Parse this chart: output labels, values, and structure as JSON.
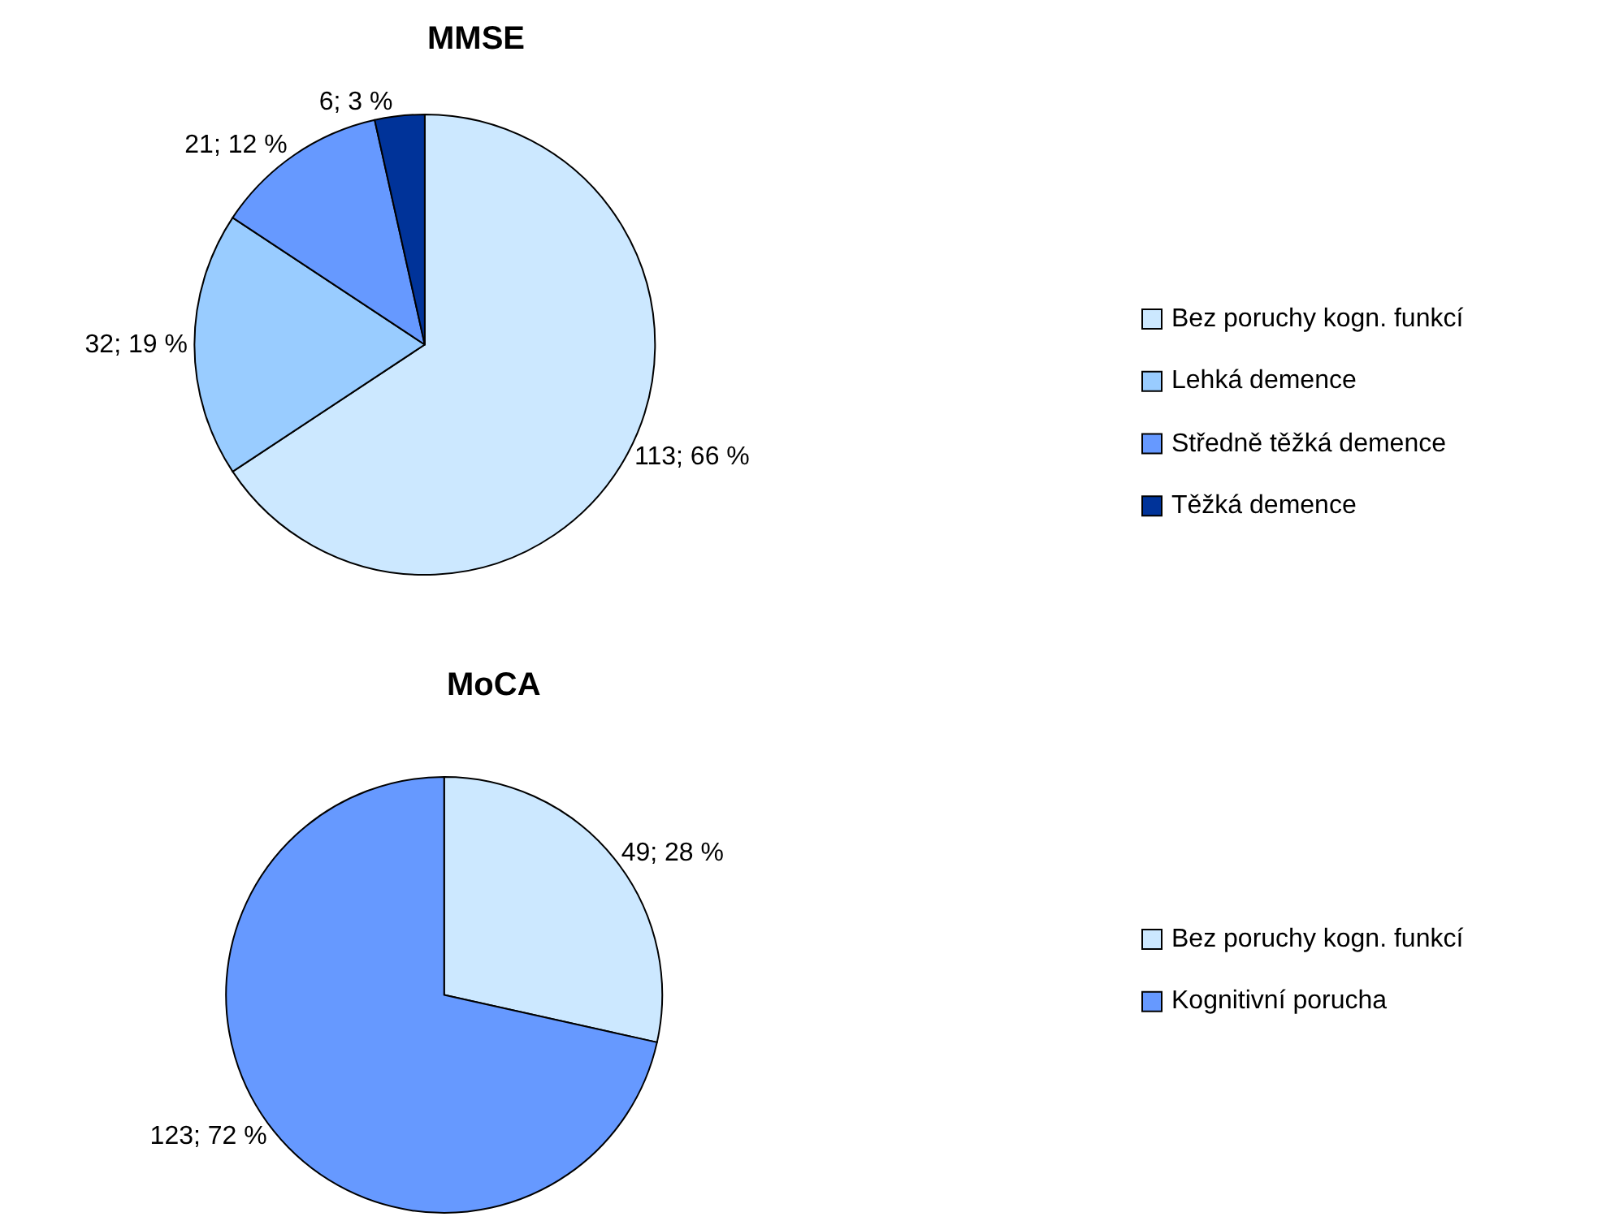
{
  "chart_data": [
    {
      "type": "pie",
      "title": "MMSE",
      "categories": [
        "Bez poruchy kogn. funkcí",
        "Lehká demence",
        "Středně těžká demence",
        "Těžká demence"
      ],
      "values": [
        113,
        32,
        21,
        6
      ],
      "colors": [
        "#cce8ff",
        "#99ccff",
        "#6699ff",
        "#003399"
      ],
      "value_labels": [
        "113; 66 %",
        "32; 19 %",
        "21; 12 %",
        "6; 3 %"
      ],
      "legend": "right"
    },
    {
      "type": "pie",
      "title": "MoCA",
      "categories": [
        "Bez poruchy kogn. funkcí",
        "Kognitivní porucha"
      ],
      "values": [
        49,
        123
      ],
      "colors": [
        "#cce8ff",
        "#6699ff"
      ],
      "value_labels": [
        "49; 28 %",
        "123; 72 %"
      ],
      "legend": "right"
    }
  ]
}
